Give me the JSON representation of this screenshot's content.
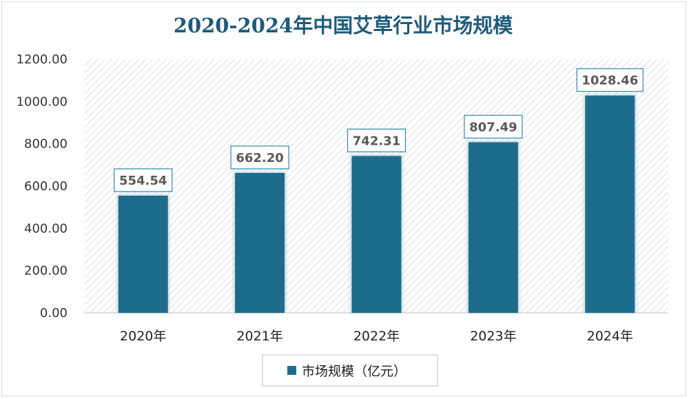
{
  "chart_data": {
    "type": "bar",
    "title": "2020-2024年中国艾草行业市场规模",
    "categories": [
      "2020年",
      "2021年",
      "2022年",
      "2023年",
      "2024年"
    ],
    "series": [
      {
        "name": "市场规模（亿元）",
        "values": [
          554.54,
          662.2,
          742.31,
          807.49,
          1028.46
        ]
      }
    ],
    "value_labels": [
      "554.54",
      "662.20",
      "742.31",
      "807.49",
      "1028.46"
    ],
    "ylim": [
      0,
      1200
    ],
    "yticks": [
      "0.00",
      "200.00",
      "400.00",
      "600.00",
      "800.00",
      "1000.00",
      "1200.00"
    ],
    "xlabel": "",
    "ylabel": "",
    "grid": false,
    "legend_position": "bottom",
    "colors": {
      "bar": "#1e6c8c",
      "title": "#1f5a7a",
      "label_border": "#3b8fb0"
    }
  }
}
